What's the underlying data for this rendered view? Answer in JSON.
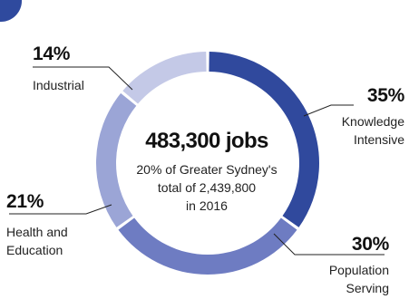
{
  "colors": {
    "badge": "#2f4a9e",
    "leader": "#222222"
  },
  "chart_data": {
    "type": "pie",
    "variant": "donut",
    "center": {
      "title": "483,300 jobs",
      "subtitle_lines": [
        "20% of Greater Sydney's",
        "total of 2,439,800",
        "in 2016"
      ]
    },
    "slices": [
      {
        "pct_label": "35%",
        "label_lines": [
          "Knowledge",
          "Intensive"
        ],
        "value": 35,
        "color": "#30499d"
      },
      {
        "pct_label": "30%",
        "label_lines": [
          "Population",
          "Serving"
        ],
        "value": 30,
        "color": "#6e7cc2"
      },
      {
        "pct_label": "21%",
        "label_lines": [
          "Health and",
          "Education"
        ],
        "value": 21,
        "color": "#9ba5d6"
      },
      {
        "pct_label": "14%",
        "label_lines": [
          "Industrial"
        ],
        "value": 14,
        "color": "#c4c9e7"
      }
    ]
  }
}
